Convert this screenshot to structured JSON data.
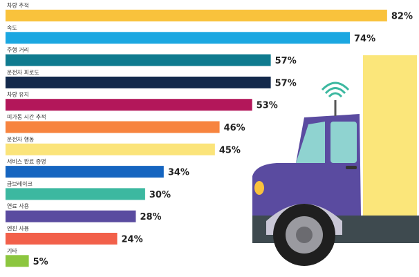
{
  "chart_data": {
    "type": "bar",
    "orientation": "horizontal",
    "categories": [
      "차량 추적",
      "속도",
      "주행 거리",
      "운전자 피로도",
      "차량 유지",
      "미가동 시간 추적",
      "운전자 행동",
      "서비스 완료 증명",
      "급브레이크",
      "연료 사용",
      "엔진 사용",
      "기타"
    ],
    "values": [
      82,
      74,
      57,
      57,
      53,
      46,
      45,
      34,
      30,
      28,
      24,
      5
    ],
    "value_labels": [
      "82%",
      "74%",
      "57%",
      "57%",
      "53%",
      "46%",
      "45%",
      "34%",
      "30%",
      "28%",
      "24%",
      "5%"
    ],
    "colors": [
      "#f9c23c",
      "#1ba7e1",
      "#0f7b8f",
      "#13294b",
      "#b3175a",
      "#f7843f",
      "#fbe47a",
      "#1565c0",
      "#3cb8a0",
      "#5a4ba0",
      "#f2604a",
      "#8cc63f"
    ]
  }
}
